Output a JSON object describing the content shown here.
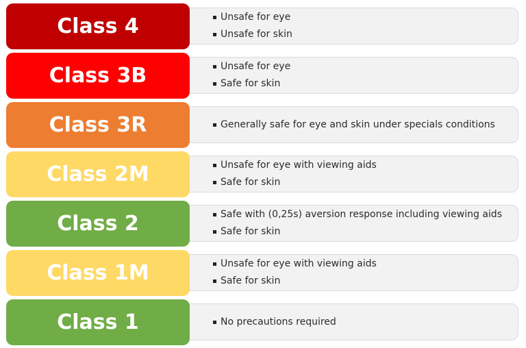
{
  "classes": [
    {
      "label": "Class 4",
      "color": "#c00000",
      "items": [
        "Unsafe for eye",
        "Unsafe for skin"
      ]
    },
    {
      "label": "Class 3B",
      "color": "#ff0000",
      "items": [
        "Unsafe for eye",
        "Safe for skin"
      ]
    },
    {
      "label": "Class 3R",
      "color": "#ed7d31",
      "items": [
        "Generally safe for eye and skin under specials conditions"
      ]
    },
    {
      "label": "Class 2M",
      "color": "#ffd966",
      "items": [
        "Unsafe for eye with viewing aids",
        "Safe for skin"
      ]
    },
    {
      "label": "Class 2",
      "color": "#70ad47",
      "items": [
        "Safe with (0,25s) aversion response including viewing aids",
        "Safe for skin"
      ]
    },
    {
      "label": "Class 1M",
      "color": "#ffd966",
      "items": [
        "Unsafe for eye with viewing aids",
        "Safe for skin"
      ]
    },
    {
      "label": "Class 1",
      "color": "#70ad47",
      "items": [
        "No precautions required"
      ]
    }
  ]
}
